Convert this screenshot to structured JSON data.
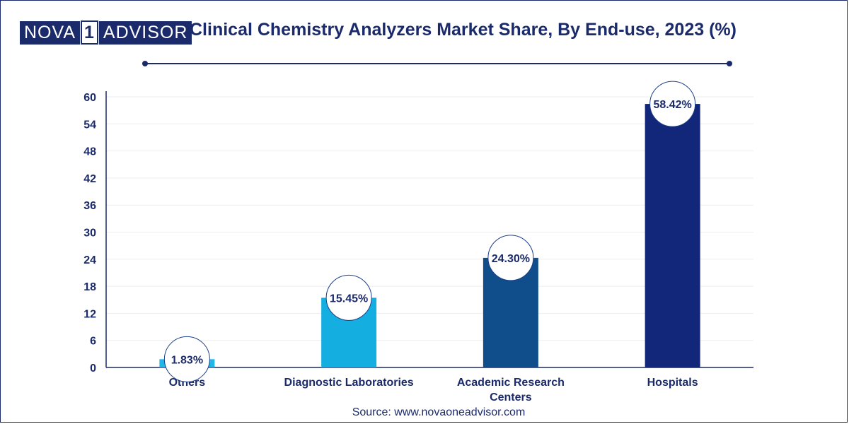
{
  "logo": {
    "part1": "NOVA",
    "part2": "1",
    "part3": "ADVISOR"
  },
  "title": "Clinical Chemistry Analyzers Market Share, By End-use, 2023 (%)",
  "source": "Source: www.novaoneadvisor.com",
  "colors": {
    "navy": "#1b2a6b",
    "axis": "#1b2a6b"
  },
  "chart_data": {
    "type": "bar",
    "title": "Clinical Chemistry Analyzers Market Share, By End-use, 2023 (%)",
    "xlabel": "",
    "ylabel": "",
    "ylim": [
      0,
      60
    ],
    "yticks": [
      0,
      6,
      12,
      18,
      24,
      30,
      36,
      42,
      48,
      54,
      60
    ],
    "grid": true,
    "categories": [
      {
        "label_lines": [
          "Others"
        ]
      },
      {
        "label_lines": [
          "Diagnostic Laboratories"
        ]
      },
      {
        "label_lines": [
          "Academic Research",
          "Centers"
        ]
      },
      {
        "label_lines": [
          "Hospitals"
        ]
      }
    ],
    "values": [
      1.83,
      15.45,
      24.3,
      58.42
    ],
    "data_labels": [
      "1.83%",
      "15.45%",
      "24.30%",
      "58.42%"
    ],
    "bar_colors": [
      "#1fb6e8",
      "#14aee0",
      "#104e8b",
      "#12277a"
    ]
  }
}
